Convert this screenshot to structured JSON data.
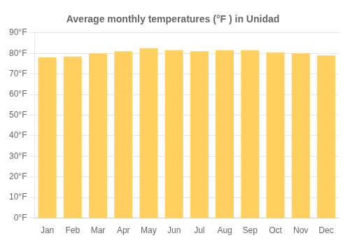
{
  "chart_data": {
    "type": "bar",
    "title": "Average monthly temperatures (°F ) in Unidad",
    "categories": [
      "Jan",
      "Feb",
      "Mar",
      "Apr",
      "May",
      "Jun",
      "Jul",
      "Aug",
      "Sep",
      "Oct",
      "Nov",
      "Dec"
    ],
    "values": [
      78,
      78.5,
      80,
      81,
      82.5,
      81.5,
      81,
      81.5,
      81.5,
      80.5,
      80,
      79
    ],
    "color": "#FFD060",
    "ylim": [
      0,
      90
    ],
    "yticks": [
      {
        "value": 0,
        "label": "0°F"
      },
      {
        "value": 10,
        "label": "10°F"
      },
      {
        "value": 20,
        "label": "20°F"
      },
      {
        "value": 30,
        "label": "30°F"
      },
      {
        "value": 40,
        "label": "40°F"
      },
      {
        "value": 50,
        "label": "50°F"
      },
      {
        "value": 60,
        "label": "60°F"
      },
      {
        "value": 70,
        "label": "70°F"
      },
      {
        "value": 80,
        "label": "80°F"
      },
      {
        "value": 90,
        "label": "90°F"
      }
    ],
    "grid": true
  }
}
